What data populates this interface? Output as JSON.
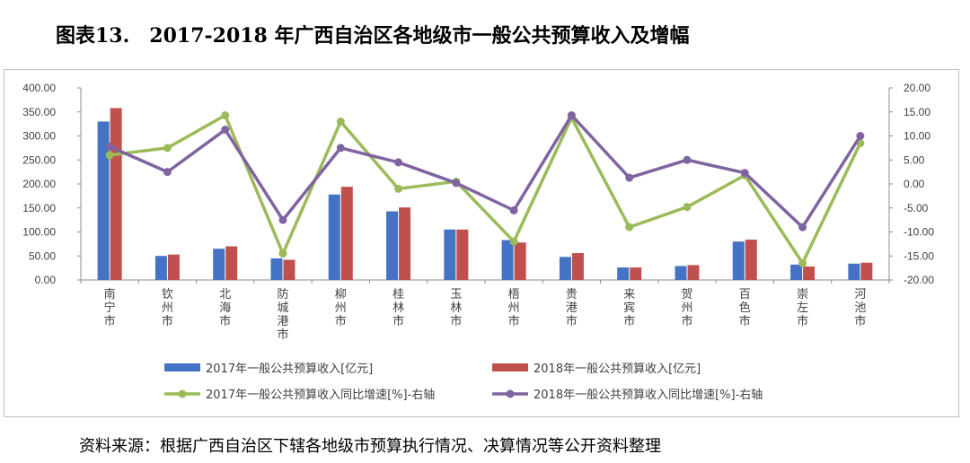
{
  "title": "图表13.　2017-2018 年广西自治区各地级市一般公共预算收入及增幅",
  "source": "资料来源：根据广西自治区下辖各地级市预算执行情况、决算情况等公开资料整理",
  "colors": {
    "bar2017": "#4472c4",
    "bar2018": "#c0504d",
    "line2017": "#9bbb59",
    "line2018": "#8064a2",
    "negative_tick": "#e0201a"
  },
  "chart_data": {
    "type": "bar",
    "categories": [
      "南宁市",
      "钦州市",
      "北海市",
      "防城港市",
      "柳州市",
      "桂林市",
      "玉林市",
      "梧州市",
      "贵港市",
      "来宾市",
      "贺州市",
      "百色市",
      "崇左市",
      "河池市"
    ],
    "left_axis": {
      "ylim": [
        0,
        400
      ],
      "ticks": [
        "0.00",
        "50.00",
        "100.00",
        "150.00",
        "200.00",
        "250.00",
        "300.00",
        "350.00",
        "400.00"
      ]
    },
    "right_axis": {
      "ylim": [
        -20,
        20
      ],
      "ticks": [
        "-20.00",
        "-15.00",
        "-10.00",
        "-5.00",
        "0.00",
        "5.00",
        "10.00",
        "15.00",
        "20.00"
      ]
    },
    "series": [
      {
        "name": "2017年一般公共预算收入[亿元]",
        "type": "bar",
        "axis": "left",
        "values": [
          330,
          50,
          65,
          45,
          178,
          143,
          105,
          83,
          48,
          26,
          29,
          80,
          32,
          34
        ]
      },
      {
        "name": "2018年一般公共预算收入[亿元]",
        "type": "bar",
        "axis": "left",
        "values": [
          358,
          53,
          70,
          42,
          194,
          151,
          105,
          78,
          56,
          26,
          31,
          84,
          28,
          36
        ]
      },
      {
        "name": "2017年一般公共预算收入同比增速[%]-右轴",
        "type": "line",
        "axis": "right",
        "values": [
          6.0,
          7.5,
          14.3,
          -14.5,
          13.0,
          -1.0,
          0.5,
          -12.0,
          13.8,
          -9.0,
          -4.8,
          1.8,
          -16.5,
          8.5
        ]
      },
      {
        "name": "2018年一般公共预算收入同比增速[%]-右轴",
        "type": "line",
        "axis": "right",
        "values": [
          7.8,
          2.5,
          11.3,
          -7.5,
          7.5,
          4.5,
          0.2,
          -5.5,
          14.3,
          1.3,
          5.0,
          2.3,
          -9.0,
          10.0
        ]
      }
    ],
    "legend_position": "bottom",
    "grid": false
  }
}
